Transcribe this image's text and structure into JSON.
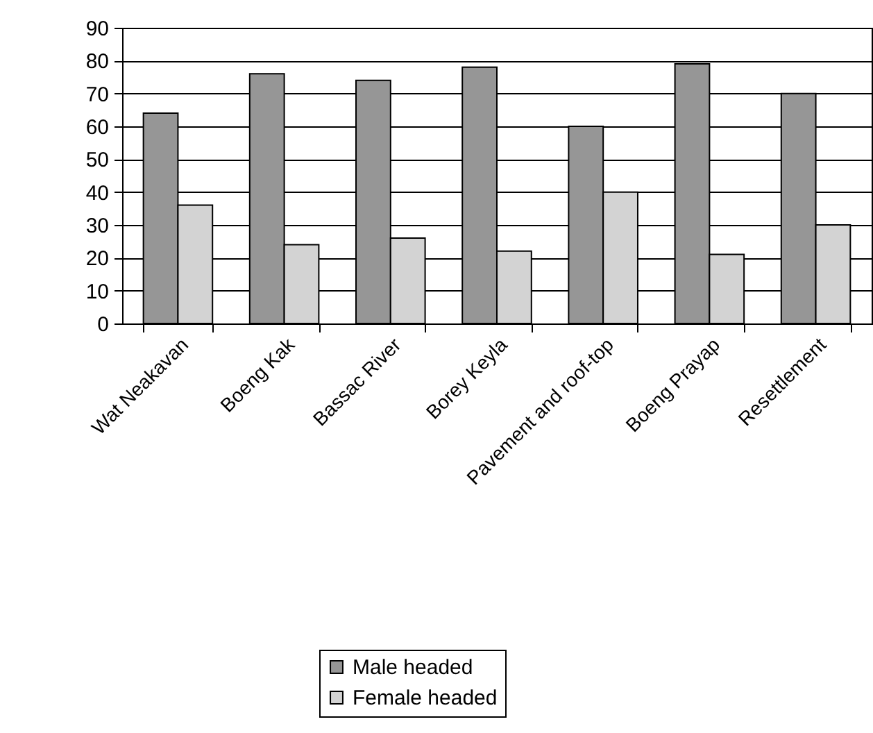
{
  "chart_data": {
    "type": "bar",
    "categories": [
      "Wat Neakavan",
      "Boeng Kak",
      "Bassac River",
      "Borey Keyla",
      "Pavement and roof-top",
      "Boeng Prayap",
      "Resettlement"
    ],
    "series": [
      {
        "name": "Male headed",
        "color": "#969696",
        "values": [
          64,
          76,
          74,
          78,
          60,
          79,
          70
        ]
      },
      {
        "name": "Female headed",
        "color": "#d3d3d3",
        "values": [
          36,
          24,
          26,
          22,
          40,
          21,
          30
        ]
      }
    ],
    "ylim": [
      0,
      90
    ],
    "yticks": [
      0,
      10,
      20,
      30,
      40,
      50,
      60,
      70,
      80,
      90
    ],
    "grid": "y",
    "legend": "bottom"
  }
}
